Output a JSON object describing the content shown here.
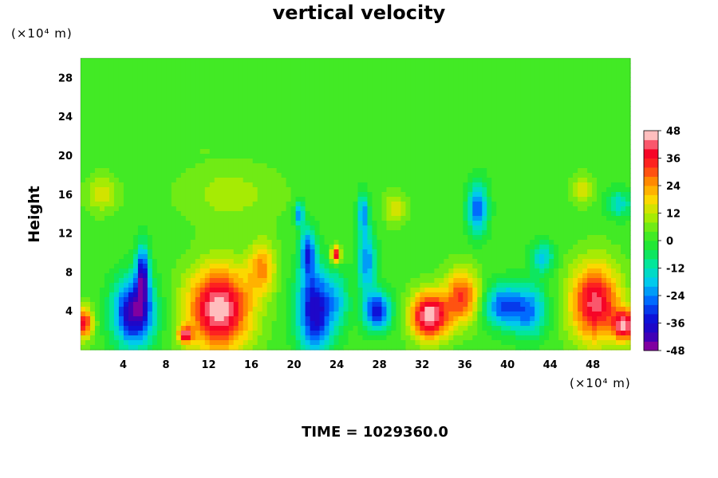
{
  "chart_data": {
    "type": "heatmap",
    "title": "vertical velocity",
    "ylabel": "Height",
    "x_unit": "(×10⁴ m)",
    "y_unit": "(×10⁴ m)",
    "footer": "TIME = 1029360.0",
    "xlim": [
      0,
      51.5
    ],
    "ylim": [
      0,
      30
    ],
    "x_ticks": [
      4,
      8,
      12,
      16,
      20,
      24,
      28,
      32,
      36,
      40,
      44,
      48
    ],
    "y_ticks": [
      4,
      8,
      12,
      16,
      20,
      24,
      28
    ],
    "colorbar": {
      "range": [
        -48,
        48
      ],
      "levels": 24,
      "ticks": [
        48,
        36,
        24,
        12,
        0,
        -12,
        -24,
        -36,
        -48
      ]
    },
    "background_value": 2,
    "features": [
      {
        "x": 13,
        "y": 4.2,
        "rx": 2.8,
        "ry": 4.0,
        "value": 46
      },
      {
        "x": 5.0,
        "y": 3.8,
        "rx": 1.8,
        "ry": 3.2,
        "value": -46
      },
      {
        "x": 5.8,
        "y": 7.8,
        "rx": 0.6,
        "ry": 2.8,
        "value": -36
      },
      {
        "x": 22,
        "y": 4.0,
        "rx": 1.6,
        "ry": 4.0,
        "value": -42
      },
      {
        "x": 21.3,
        "y": 10.0,
        "rx": 0.7,
        "ry": 2.5,
        "value": -30
      },
      {
        "x": 20.5,
        "y": 14.0,
        "rx": 0.4,
        "ry": 1.2,
        "value": -28
      },
      {
        "x": 27.8,
        "y": 4.0,
        "rx": 1.2,
        "ry": 1.8,
        "value": -38
      },
      {
        "x": 26.8,
        "y": 9.0,
        "rx": 0.8,
        "ry": 3.0,
        "value": -26
      },
      {
        "x": 26.5,
        "y": 14.0,
        "rx": 0.5,
        "ry": 2.0,
        "value": -24
      },
      {
        "x": 32.7,
        "y": 3.5,
        "rx": 1.7,
        "ry": 2.3,
        "value": 46
      },
      {
        "x": 35.8,
        "y": 5.5,
        "rx": 1.5,
        "ry": 2.6,
        "value": 30
      },
      {
        "x": 39.5,
        "y": 4.5,
        "rx": 1.6,
        "ry": 2.0,
        "value": -30
      },
      {
        "x": 42.0,
        "y": 4.0,
        "rx": 1.6,
        "ry": 2.5,
        "value": -26
      },
      {
        "x": 37.2,
        "y": 14.5,
        "rx": 0.9,
        "ry": 2.5,
        "value": -30
      },
      {
        "x": 43.3,
        "y": 9.5,
        "rx": 1.0,
        "ry": 1.5,
        "value": -20
      },
      {
        "x": 48.2,
        "y": 4.8,
        "rx": 2.2,
        "ry": 3.8,
        "value": 40
      },
      {
        "x": 51.0,
        "y": 2.5,
        "rx": 1.0,
        "ry": 1.5,
        "value": 40
      },
      {
        "x": 0.3,
        "y": 2.8,
        "rx": 0.8,
        "ry": 1.5,
        "value": 36
      },
      {
        "x": 23.9,
        "y": 9.8,
        "rx": 0.4,
        "ry": 0.8,
        "value": 40
      },
      {
        "x": 9.8,
        "y": 1.5,
        "rx": 0.6,
        "ry": 0.8,
        "value": 34
      },
      {
        "x": 2.0,
        "y": 16.0,
        "rx": 1.4,
        "ry": 1.8,
        "value": 12
      },
      {
        "x": 14.0,
        "y": 16.0,
        "rx": 4.5,
        "ry": 3.0,
        "value": 8
      },
      {
        "x": 29.5,
        "y": 14.5,
        "rx": 1.0,
        "ry": 1.6,
        "value": 12
      },
      {
        "x": 47.0,
        "y": 16.5,
        "rx": 1.0,
        "ry": 1.5,
        "value": 12
      },
      {
        "x": 17.0,
        "y": 8.5,
        "rx": 1.2,
        "ry": 2.5,
        "value": 22
      },
      {
        "x": 24.2,
        "y": 5.0,
        "rx": 1.0,
        "ry": 2.5,
        "value": -14
      },
      {
        "x": 50.5,
        "y": 15.0,
        "rx": 1.2,
        "ry": 1.4,
        "value": -16
      }
    ]
  }
}
